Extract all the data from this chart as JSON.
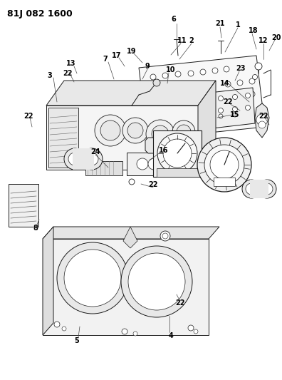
{
  "title": "81J 082 1600",
  "bg_color": "#ffffff",
  "line_color": "#1a1a1a",
  "title_fontsize": 9,
  "label_fontsize": 7,
  "fig_w": 3.96,
  "fig_h": 5.33,
  "dpi": 100
}
